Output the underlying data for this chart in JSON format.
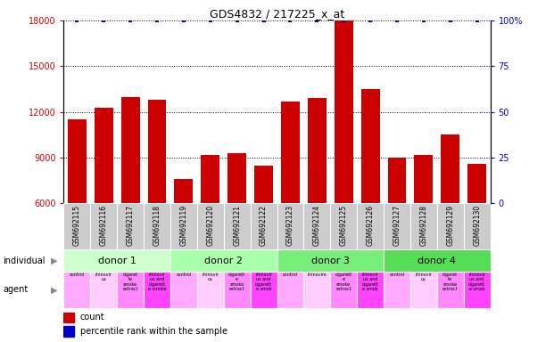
{
  "title": "GDS4832 / 217225_x_at",
  "samples": [
    "GSM692115",
    "GSM692116",
    "GSM692117",
    "GSM692118",
    "GSM692119",
    "GSM692120",
    "GSM692121",
    "GSM692122",
    "GSM692123",
    "GSM692124",
    "GSM692125",
    "GSM692126",
    "GSM692127",
    "GSM692128",
    "GSM692129",
    "GSM692130"
  ],
  "counts": [
    11500,
    12300,
    13000,
    12800,
    7600,
    9200,
    9300,
    8500,
    12700,
    12900,
    18000,
    13500,
    9000,
    9200,
    10500,
    8600
  ],
  "percentile_ranks": [
    100,
    100,
    100,
    100,
    100,
    100,
    100,
    100,
    100,
    100,
    100,
    100,
    100,
    100,
    100,
    100
  ],
  "bar_color": "#cc0000",
  "dot_color": "#0000cc",
  "ylim_left": [
    6000,
    18000
  ],
  "ylim_right": [
    0,
    100
  ],
  "yticks_left": [
    6000,
    9000,
    12000,
    15000,
    18000
  ],
  "yticks_right": [
    0,
    25,
    50,
    75,
    100
  ],
  "donors": [
    {
      "label": "donor 1",
      "start": 0,
      "end": 4,
      "color": "#ccffcc"
    },
    {
      "label": "donor 2",
      "start": 4,
      "end": 8,
      "color": "#aaffaa"
    },
    {
      "label": "donor 3",
      "start": 8,
      "end": 12,
      "color": "#77ee77"
    },
    {
      "label": "donor 4",
      "start": 12,
      "end": 16,
      "color": "#55dd55"
    }
  ],
  "agent_labels": [
    "control",
    "rhinovir\nus",
    "cigaret\nte\nsmoke\nextract",
    "rhinovir\nus and\ncigarett\ne smoke",
    "control",
    "rhinovir\nus",
    "cigarett\ne\nsmoke\nextract",
    "rhinovir\nus and\ncigarett\ne smok",
    "control",
    "rhinovire",
    "cigarett\ne\nsmoke\nextract",
    "rhinovir\nus and\ncigarett\ne smok",
    "control",
    "rhinovir\nus",
    "cigaret\nte\nsmoke\nextract",
    "rhinovir\nus and\ncigarett\ne smok"
  ],
  "agent_colors": [
    "#ffaaff",
    "#ffccff",
    "#ff88ff",
    "#ff44ff",
    "#ffaaff",
    "#ffccff",
    "#ff88ff",
    "#ff44ff",
    "#ffaaff",
    "#ffccff",
    "#ff88ff",
    "#ff44ff",
    "#ffaaff",
    "#ffccff",
    "#ff88ff",
    "#ff44ff"
  ],
  "sample_bg_color": "#cccccc",
  "sample_bg_edge_color": "#ffffff",
  "grid_color": "black",
  "grid_style": ":",
  "grid_lw": 0.7
}
